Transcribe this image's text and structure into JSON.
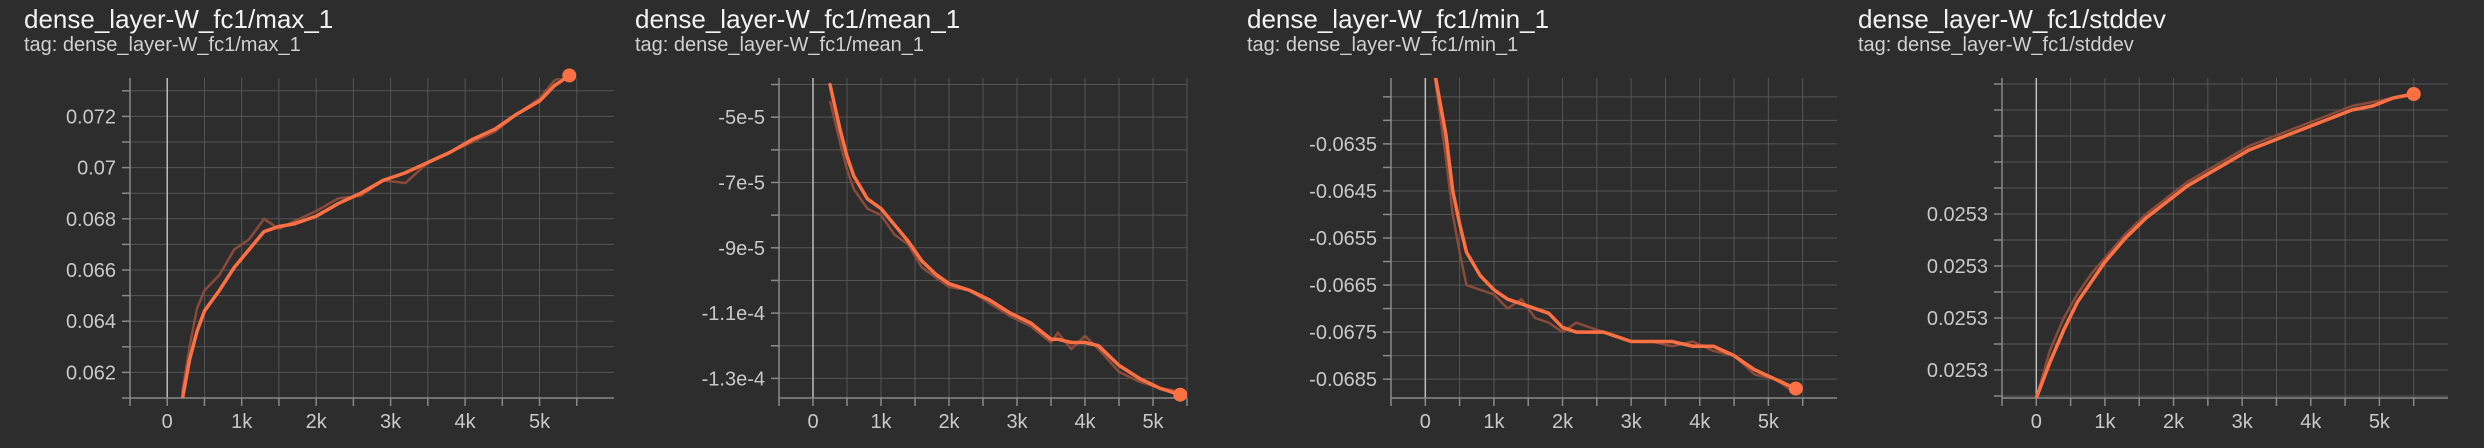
{
  "theme": {
    "background": "#2d2d2d",
    "grid": "#555555",
    "axis": "#8a8a8a",
    "zero_line": "#bdbdbd",
    "series_color": "#ff7043",
    "raw_color": "#8a4a3a"
  },
  "charts": [
    {
      "title": "dense_layer-W_fc1/max_1",
      "tag": "tag: dense_layer-W_fc1/max_1"
    },
    {
      "title": "dense_layer-W_fc1/mean_1",
      "tag": "tag: dense_layer-W_fc1/mean_1"
    },
    {
      "title": "dense_layer-W_fc1/min_1",
      "tag": "tag: dense_layer-W_fc1/min_1"
    },
    {
      "title": "dense_layer-W_fc1/stddev",
      "tag": "tag: dense_layer-W_fc1/stddev"
    }
  ],
  "chart_data": [
    {
      "type": "line",
      "title": "dense_layer-W_fc1/max_1",
      "xlim": [
        -500,
        6000
      ],
      "ylim": [
        0.061,
        0.0735
      ],
      "x_ticks": [
        0,
        1000,
        2000,
        3000,
        4000,
        5000
      ],
      "x_tick_labels": [
        "0",
        "1k",
        "2k",
        "3k",
        "4k",
        "5k"
      ],
      "y_ticks": [
        0.062,
        0.064,
        0.066,
        0.068,
        0.07,
        0.072
      ],
      "y_tick_labels": [
        "0.062",
        "0.064",
        "0.066",
        "0.068",
        "0.07",
        "0.072"
      ],
      "grid": true,
      "x": [
        200,
        300,
        400,
        500,
        700,
        900,
        1100,
        1300,
        1500,
        1700,
        2000,
        2300,
        2600,
        2900,
        3200,
        3500,
        3800,
        4100,
        4400,
        4700,
        5000,
        5200,
        5400
      ],
      "raw": [
        0.0612,
        0.063,
        0.0645,
        0.0652,
        0.0658,
        0.0668,
        0.0672,
        0.068,
        0.0676,
        0.0679,
        0.0683,
        0.0688,
        0.0689,
        0.0695,
        0.0694,
        0.0702,
        0.0706,
        0.071,
        0.0714,
        0.0721,
        0.0727,
        0.0734,
        0.0737
      ],
      "smoothed": [
        0.0609,
        0.0625,
        0.0636,
        0.0644,
        0.0652,
        0.0661,
        0.0668,
        0.0675,
        0.0677,
        0.0678,
        0.0681,
        0.0686,
        0.069,
        0.0695,
        0.0698,
        0.0702,
        0.0706,
        0.0711,
        0.0715,
        0.0721,
        0.0726,
        0.0732,
        0.0736
      ]
    },
    {
      "type": "line",
      "title": "dense_layer-W_fc1/mean_1",
      "xlim": [
        -500,
        5500
      ],
      "ylim": [
        -0.000136,
        -3.8e-05
      ],
      "x_ticks": [
        0,
        1000,
        2000,
        3000,
        4000,
        5000
      ],
      "x_tick_labels": [
        "0",
        "1k",
        "2k",
        "3k",
        "4k",
        "5k"
      ],
      "y_ticks": [
        -5e-05,
        -7e-05,
        -9e-05,
        -0.00011,
        -0.00013
      ],
      "y_tick_labels": [
        "-5e-5",
        "-7e-5",
        "-9e-5",
        "-1.1e-4",
        "-1.3e-4"
      ],
      "grid": true,
      "x": [
        250,
        400,
        500,
        600,
        800,
        1000,
        1200,
        1400,
        1600,
        1800,
        2000,
        2300,
        2600,
        2900,
        3200,
        3500,
        3600,
        3800,
        4000,
        4200,
        4500,
        4800,
        5100,
        5400
      ],
      "raw": [
        -4.5e-05,
        -5.8e-05,
        -6.6e-05,
        -7.2e-05,
        -7.8e-05,
        -8e-05,
        -8.6e-05,
        -8.9e-05,
        -9.6e-05,
        -9.9e-05,
        -0.000102,
        -0.000103,
        -0.000107,
        -0.000111,
        -0.000114,
        -0.000119,
        -0.000116,
        -0.000121,
        -0.000117,
        -0.000121,
        -0.000128,
        -0.000131,
        -0.000133,
        -0.000134
      ],
      "smoothed": [
        -4e-05,
        -5.4e-05,
        -6.2e-05,
        -6.8e-05,
        -7.5e-05,
        -7.8e-05,
        -8.3e-05,
        -8.8e-05,
        -9.4e-05,
        -9.8e-05,
        -0.000101,
        -0.000103,
        -0.000106,
        -0.00011,
        -0.000113,
        -0.000118,
        -0.000118,
        -0.000119,
        -0.000119,
        -0.00012,
        -0.000126,
        -0.00013,
        -0.000133,
        -0.000135
      ]
    },
    {
      "type": "line",
      "title": "dense_layer-W_fc1/min_1",
      "xlim": [
        -500,
        6000
      ],
      "ylim": [
        -0.0689,
        -0.0621
      ],
      "x_ticks": [
        0,
        1000,
        2000,
        3000,
        4000,
        5000
      ],
      "x_tick_labels": [
        "0",
        "1k",
        "2k",
        "3k",
        "4k",
        "5k"
      ],
      "y_ticks": [
        -0.0635,
        -0.0645,
        -0.0655,
        -0.0665,
        -0.0675,
        -0.0685
      ],
      "y_tick_labels": [
        "-0.0635",
        "-0.0645",
        "-0.0655",
        "-0.0665",
        "-0.0675",
        "-0.0685"
      ],
      "grid": true,
      "x": [
        150,
        300,
        400,
        500,
        600,
        800,
        1000,
        1200,
        1400,
        1600,
        1800,
        2000,
        2200,
        2400,
        2600,
        2800,
        3000,
        3300,
        3600,
        3900,
        4200,
        4500,
        4800,
        5100,
        5400
      ],
      "raw": [
        -0.0622,
        -0.0638,
        -0.065,
        -0.0658,
        -0.0665,
        -0.0666,
        -0.0667,
        -0.067,
        -0.0668,
        -0.0672,
        -0.0673,
        -0.0675,
        -0.0673,
        -0.0674,
        -0.0675,
        -0.0676,
        -0.0677,
        -0.0677,
        -0.0678,
        -0.0677,
        -0.0679,
        -0.068,
        -0.0684,
        -0.0685,
        -0.0688
      ],
      "smoothed": [
        -0.0621,
        -0.0633,
        -0.0645,
        -0.0652,
        -0.0658,
        -0.0663,
        -0.0666,
        -0.0668,
        -0.0669,
        -0.067,
        -0.0671,
        -0.0674,
        -0.0675,
        -0.0675,
        -0.0675,
        -0.0676,
        -0.0677,
        -0.0677,
        -0.0677,
        -0.0678,
        -0.0678,
        -0.068,
        -0.0683,
        -0.0685,
        -0.0687
      ]
    },
    {
      "type": "line",
      "title": "dense_layer-W_fc1/stddev",
      "xlim": [
        -500,
        6000
      ],
      "ylim": [
        0.02527,
        0.02535
      ],
      "x_ticks": [
        0,
        1000,
        2000,
        3000,
        4000,
        5000
      ],
      "x_tick_labels": [
        "0",
        "1k",
        "2k",
        "3k",
        "4k",
        "5k"
      ],
      "y_ticks": [
        0.025277,
        0.02529,
        0.025303,
        0.025316
      ],
      "y_tick_labels": [
        "0.0253",
        "0.0253",
        "0.0253",
        "0.0253"
      ],
      "grid": true,
      "x": [
        0,
        200,
        400,
        600,
        800,
        1000,
        1300,
        1600,
        1900,
        2200,
        2500,
        2800,
        3100,
        3400,
        3700,
        4000,
        4300,
        4600,
        4900,
        5200,
        5500
      ],
      "raw": [
        0.02527,
        0.025282,
        0.02529,
        0.025296,
        0.025301,
        0.025305,
        0.025311,
        0.025316,
        0.02532,
        0.025324,
        0.025327,
        0.02533,
        0.025333,
        0.025335,
        0.025337,
        0.025339,
        0.025341,
        0.025343,
        0.025344,
        0.025345,
        0.025346
      ],
      "smoothed": [
        0.02527,
        0.025279,
        0.025287,
        0.025294,
        0.025299,
        0.025304,
        0.02531,
        0.025315,
        0.025319,
        0.025323,
        0.025326,
        0.025329,
        0.025332,
        0.025334,
        0.025336,
        0.025338,
        0.02534,
        0.025342,
        0.025343,
        0.025345,
        0.025346
      ]
    }
  ]
}
